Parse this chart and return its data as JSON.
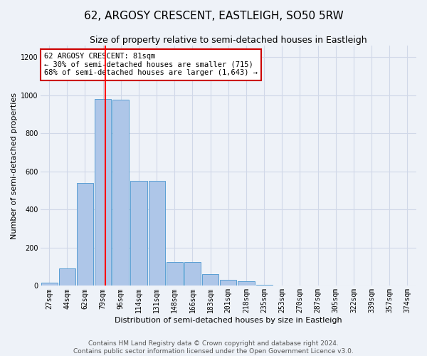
{
  "title": "62, ARGOSY CRESCENT, EASTLEIGH, SO50 5RW",
  "subtitle": "Size of property relative to semi-detached houses in Eastleigh",
  "xlabel": "Distribution of semi-detached houses by size in Eastleigh",
  "ylabel": "Number of semi-detached properties",
  "bin_labels": [
    "27sqm",
    "44sqm",
    "62sqm",
    "79sqm",
    "96sqm",
    "114sqm",
    "131sqm",
    "148sqm",
    "166sqm",
    "183sqm",
    "201sqm",
    "218sqm",
    "235sqm",
    "253sqm",
    "270sqm",
    "287sqm",
    "305sqm",
    "322sqm",
    "339sqm",
    "357sqm",
    "374sqm"
  ],
  "bar_values": [
    15,
    90,
    540,
    980,
    975,
    550,
    550,
    125,
    125,
    62,
    30,
    25,
    5,
    0,
    0,
    0,
    0,
    0,
    0,
    0,
    0
  ],
  "bar_color": "#aec6e8",
  "bar_edge_color": "#5a9fd4",
  "grid_color": "#d0d8e8",
  "background_color": "#eef2f8",
  "red_line_x": 3.15,
  "annotation_text": "62 ARGOSY CRESCENT: 81sqm\n← 30% of semi-detached houses are smaller (715)\n68% of semi-detached houses are larger (1,643) →",
  "annotation_box_color": "#ffffff",
  "annotation_box_edge": "#cc0000",
  "footer_line1": "Contains HM Land Registry data © Crown copyright and database right 2024.",
  "footer_line2": "Contains public sector information licensed under the Open Government Licence v3.0.",
  "ylim": [
    0,
    1260
  ],
  "yticks": [
    0,
    200,
    400,
    600,
    800,
    1000,
    1200
  ],
  "title_fontsize": 11,
  "subtitle_fontsize": 9,
  "axis_label_fontsize": 8,
  "tick_fontsize": 7,
  "annotation_fontsize": 7.5,
  "footer_fontsize": 6.5
}
